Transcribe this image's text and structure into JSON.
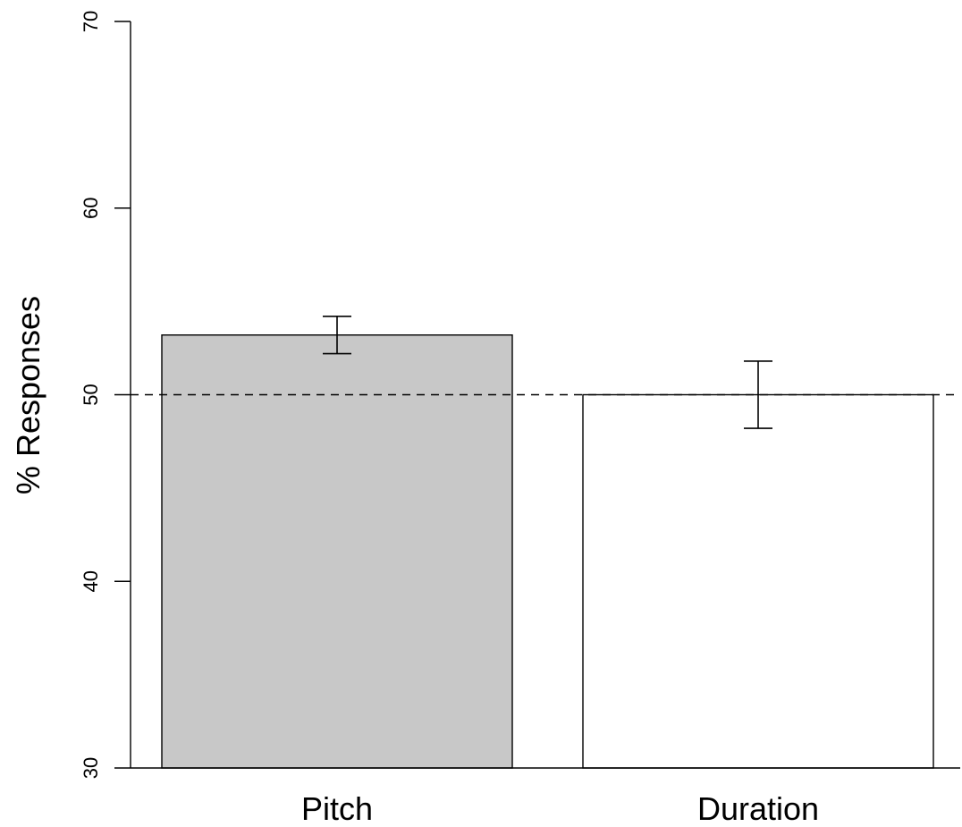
{
  "chart_data": {
    "type": "bar",
    "categories": [
      "Pitch",
      "Duration"
    ],
    "values": [
      53.2,
      50.0
    ],
    "error_low": [
      52.2,
      48.2
    ],
    "error_high": [
      54.2,
      51.8
    ],
    "bar_colors": [
      "#c8c8c8",
      "#ffffff"
    ],
    "ylabel": "% Responses",
    "xlabel": "",
    "ylim": [
      30,
      70
    ],
    "yticks": [
      30,
      40,
      50,
      60,
      70
    ],
    "reference_line": 50,
    "grid": false
  }
}
